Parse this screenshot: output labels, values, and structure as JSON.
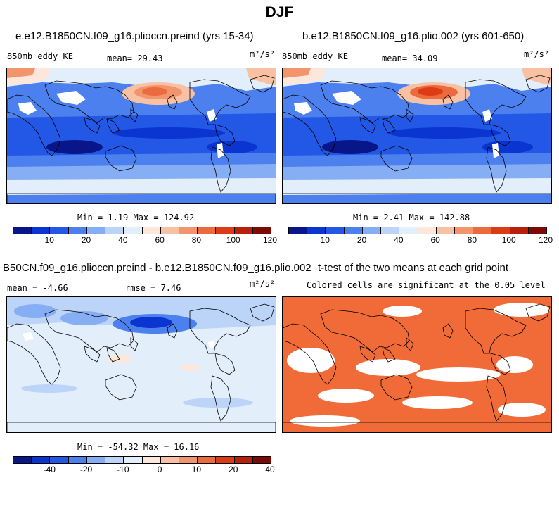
{
  "page": {
    "title": "DJF"
  },
  "colors": {
    "pos": [
      "#08168a",
      "#0a35d0",
      "#2358e6",
      "#4c80ee",
      "#86aef4",
      "#bcd4f8",
      "#e3eefb",
      "#fde6da",
      "#f8c1a4",
      "#f2946c",
      "#eb6a3e",
      "#dd3a16",
      "#b9200c",
      "#7d0b05"
    ],
    "diff": [
      "#08168a",
      "#0a35d0",
      "#2358e6",
      "#4c80ee",
      "#86aef4",
      "#bcd4f8",
      "#e3eefb",
      "#fde6da",
      "#f8c1a4",
      "#f2946c",
      "#eb6a3e",
      "#dd3a16",
      "#b9200c",
      "#7d0b05"
    ],
    "sig": "#f16b38"
  },
  "panel1": {
    "title": "e.e12.B1850CN.f09_g16.plioccn.preind (yrs 15-34)",
    "left_label": "850mb eddy KE",
    "mean_text": "mean=  29.43",
    "units": "m²/s²",
    "minmax": "Min =   1.19 Max = 124.92",
    "ticks": [
      "10",
      "20",
      "40",
      "60",
      "80",
      "100",
      "120"
    ]
  },
  "panel2": {
    "title": "b.e12.B1850CN.f09_g16.plio.002 (yrs 601-650)",
    "left_label": "850mb eddy KE",
    "mean_text": "mean=  34.09",
    "units": "m²/s²",
    "minmax": "Min =   2.41 Max = 142.88",
    "ticks": [
      "10",
      "20",
      "40",
      "60",
      "80",
      "100",
      "120"
    ]
  },
  "panel3": {
    "title": "B50CN.f09_g16.plioccn.preind - b.e12.B1850CN.f09_g16.plio.002",
    "mean_text": "mean =  -4.66",
    "rmse_text": "rmse =   7.46",
    "units": "m²/s²",
    "minmax": "Min = -54.32 Max =  16.16",
    "ticks": [
      "-40",
      "-20",
      "-10",
      "0",
      "10",
      "20",
      "40"
    ]
  },
  "panel4": {
    "title": "t-test of the two means at each grid point",
    "subtitle": "Colored cells are significant at the 0.05 level"
  }
}
